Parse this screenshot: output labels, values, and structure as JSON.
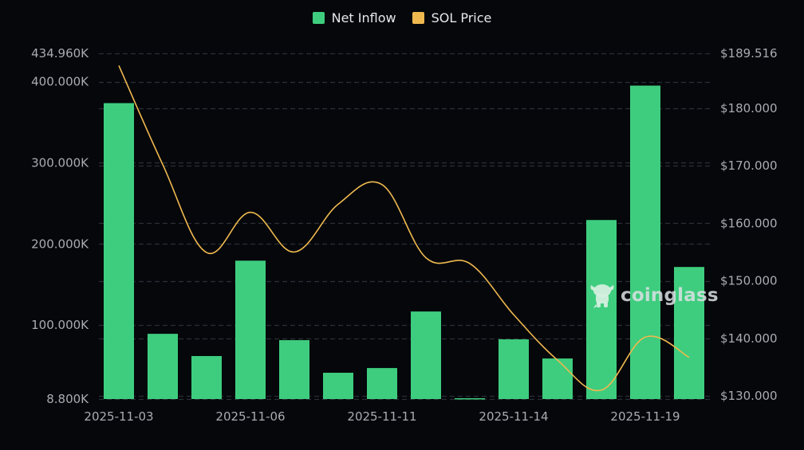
{
  "legend": {
    "items": [
      {
        "label": "Net Inflow",
        "color": "#3ecd7e"
      },
      {
        "label": "SOL Price",
        "color": "#f0b94f"
      }
    ]
  },
  "watermark": {
    "text": "coinglass",
    "icon": "coinglass-bull-logo-icon"
  },
  "colors": {
    "background": "#05070b",
    "bar": "#3ecd7e",
    "line": "#f0b94f",
    "grid": "#2b2f36",
    "axis_text": "#a9abb1"
  },
  "chart_data": {
    "type": "bar",
    "title": "",
    "xlabel": "",
    "ylabel": "Net Inflow",
    "y2label": "SOL Price",
    "x_tick_labels": [
      "2025-11-03",
      "2025-11-06",
      "2025-11-11",
      "2025-11-14",
      "2025-11-19"
    ],
    "x_tick_bar_indices": [
      0,
      3,
      6,
      9,
      12
    ],
    "bar_count": 14,
    "ylim": [
      8.8,
      434.96
    ],
    "y_ticks": [
      "434.960K",
      "400.000K",
      "300.000K",
      "200.000K",
      "100.000K",
      "8.800K"
    ],
    "y2lim": [
      130.0,
      189.516
    ],
    "y2_ticks": [
      "$189.516",
      "$180.000",
      "$170.000",
      "$160.000",
      "$150.000",
      "$140.000",
      "$130.000"
    ],
    "grid": true,
    "legend_position": "top",
    "series": [
      {
        "name": "Net Inflow",
        "type": "bar",
        "unit": "K",
        "values": [
          373.6,
          89.2,
          61.8,
          179.4,
          81.4,
          41.2,
          47.0,
          116.7,
          9.8,
          82.4,
          58.8,
          229.5,
          395.2,
          171.6
        ]
      },
      {
        "name": "SOL Price",
        "type": "line",
        "axis": "right",
        "unit": "$",
        "values": [
          187.4,
          170.2,
          154.9,
          161.9,
          155.0,
          163.3,
          166.7,
          154.0,
          153.0,
          144.1,
          136.2,
          131.0,
          140.2,
          136.7
        ]
      }
    ]
  }
}
